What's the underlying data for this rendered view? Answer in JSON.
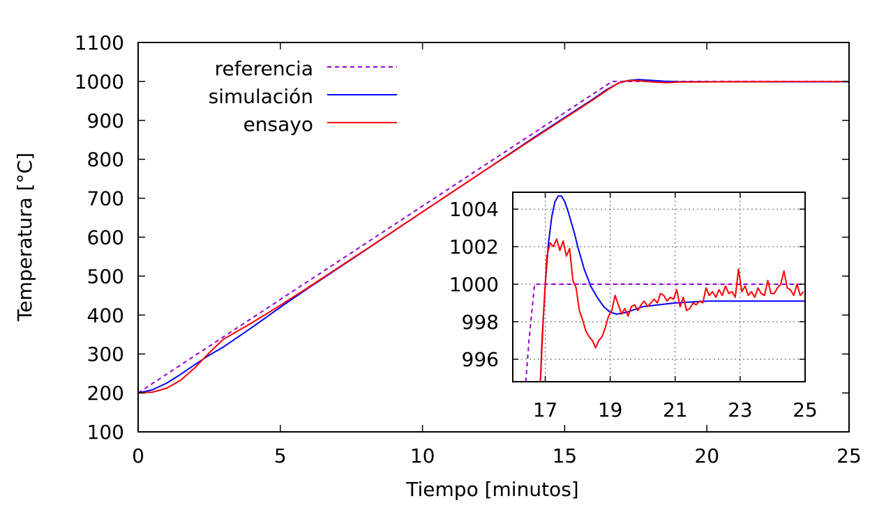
{
  "chart_data": [
    {
      "type": "line",
      "xlabel": "Tiempo [minutos]",
      "ylabel": "Temperatura [°C]",
      "xlim": [
        0,
        25
      ],
      "ylim": [
        100,
        1100
      ],
      "xticks": [
        0,
        5,
        10,
        15,
        20,
        25
      ],
      "yticks": [
        100,
        200,
        300,
        400,
        500,
        600,
        700,
        800,
        900,
        1000,
        1100
      ],
      "grid": false,
      "legend_position": "top-left",
      "series": [
        {
          "name": "referencia",
          "color": "#9400d3",
          "dash": "dashed",
          "x": [
            0,
            16.67,
            25
          ],
          "y": [
            200,
            1000,
            1000
          ]
        },
        {
          "name": "simulación",
          "color": "#0000ff",
          "dash": "solid",
          "x": [
            0,
            0.5,
            1,
            1.5,
            2,
            2.5,
            3,
            4,
            5,
            6,
            8,
            10,
            12,
            14,
            16,
            16.5,
            16.9,
            17.3,
            17.6,
            18,
            18.5,
            19,
            20,
            25
          ],
          "y": [
            200,
            208,
            225,
            248,
            273,
            297,
            318,
            368,
            420,
            470,
            567,
            665,
            762,
            860,
            955,
            980,
            996,
            1003,
            1004.6,
            1003,
            1000.5,
            999.3,
            999.1,
            999.1
          ]
        },
        {
          "name": "ensayo",
          "color": "#ff0000",
          "dash": "solid",
          "x": [
            0,
            0.5,
            1,
            1.5,
            2,
            2.5,
            3,
            4,
            5,
            6,
            8,
            10,
            12,
            14,
            16,
            16.5,
            16.9,
            17.2,
            17.5,
            17.8,
            18.2,
            18.6,
            19,
            19.5,
            20,
            21,
            22,
            23,
            24,
            25
          ],
          "y": [
            200,
            202,
            212,
            233,
            265,
            303,
            338,
            380,
            425,
            472,
            568,
            665,
            762,
            858,
            953,
            978,
            996,
            1002,
            1002.3,
            1000.5,
            998,
            996.8,
            998.5,
            998.6,
            998.8,
            999.2,
            999.3,
            999.6,
            999.8,
            999.7
          ]
        }
      ]
    },
    {
      "type": "line",
      "xlim": [
        16,
        25
      ],
      "ylim": [
        994.8,
        1004.9
      ],
      "xticks": [
        17,
        19,
        21,
        23,
        25
      ],
      "yticks": [
        996,
        998,
        1000,
        1002,
        1004
      ],
      "grid": true,
      "position": "inset-lower-right",
      "series": [
        {
          "name": "referencia",
          "color": "#9400d3",
          "dash": "dashed",
          "x": [
            16.4,
            16.5,
            16.67,
            25
          ],
          "y": [
            994.8,
            997,
            1000,
            1000
          ]
        },
        {
          "name": "simulación",
          "color": "#0000ff",
          "dash": "solid",
          "x": [
            16.85,
            16.9,
            17.0,
            17.1,
            17.2,
            17.3,
            17.4,
            17.5,
            17.6,
            17.7,
            17.8,
            17.9,
            18.0,
            18.2,
            18.4,
            18.6,
            18.8,
            19.0,
            19.2,
            19.5,
            20.0,
            21.0,
            22.0,
            23.0,
            24.0,
            25.0
          ],
          "y": [
            994.8,
            997.0,
            1000.0,
            1002.2,
            1003.6,
            1004.4,
            1004.7,
            1004.7,
            1004.4,
            1003.9,
            1003.3,
            1002.7,
            1002.0,
            1000.8,
            999.9,
            999.3,
            998.8,
            998.5,
            998.4,
            998.5,
            998.8,
            999.0,
            999.1,
            999.1,
            999.1,
            999.1
          ]
        },
        {
          "name": "ensayo",
          "color": "#ff0000",
          "dash": "solid",
          "x": [
            16.85,
            16.95,
            17.05,
            17.15,
            17.25,
            17.35,
            17.45,
            17.55,
            17.65,
            17.75,
            17.85,
            17.95,
            18.05,
            18.15,
            18.25,
            18.35,
            18.45,
            18.55,
            18.65,
            18.75,
            18.85,
            18.95,
            19.05,
            19.15,
            19.25,
            19.35,
            19.45,
            19.55,
            19.65,
            19.75,
            19.85,
            19.95,
            20.05,
            20.15,
            20.25,
            20.35,
            20.45,
            20.55,
            20.65,
            20.75,
            20.85,
            20.95,
            21.05,
            21.15,
            21.25,
            21.35,
            21.45,
            21.55,
            21.65,
            21.75,
            21.85,
            21.95,
            22.05,
            22.15,
            22.25,
            22.35,
            22.45,
            22.55,
            22.65,
            22.75,
            22.85,
            22.95,
            23.05,
            23.15,
            23.25,
            23.35,
            23.45,
            23.55,
            23.65,
            23.75,
            23.85,
            23.95,
            24.05,
            24.15,
            24.25,
            24.35,
            24.45,
            24.55,
            24.65,
            24.75,
            24.85,
            24.95
          ],
          "y": [
            994.8,
            998.5,
            1001.5,
            1002.2,
            1002.0,
            1002.4,
            1001.8,
            1002.3,
            1001.5,
            1001.9,
            1000.2,
            999.8,
            998.6,
            998.1,
            997.5,
            997.2,
            997.0,
            996.6,
            997.0,
            997.2,
            997.7,
            998.3,
            998.6,
            999.4,
            998.9,
            998.4,
            998.7,
            998.3,
            998.8,
            998.9,
            998.6,
            998.9,
            999.1,
            998.8,
            999.0,
            999.2,
            999.0,
            999.5,
            999.4,
            999.1,
            999.3,
            999.2,
            999.7,
            998.8,
            999.3,
            998.6,
            998.7,
            999.0,
            998.9,
            999.1,
            999.0,
            999.8,
            999.4,
            999.6,
            999.3,
            999.7,
            999.4,
            999.9,
            999.5,
            999.6,
            999.3,
            1000.8,
            999.6,
            999.9,
            999.4,
            999.6,
            999.3,
            999.8,
            999.5,
            999.4,
            1000.2,
            999.5,
            999.5,
            999.8,
            1000.0,
            1000.7,
            999.8,
            999.7,
            999.4,
            1000.0,
            999.4,
            999.6
          ]
        }
      ]
    }
  ]
}
